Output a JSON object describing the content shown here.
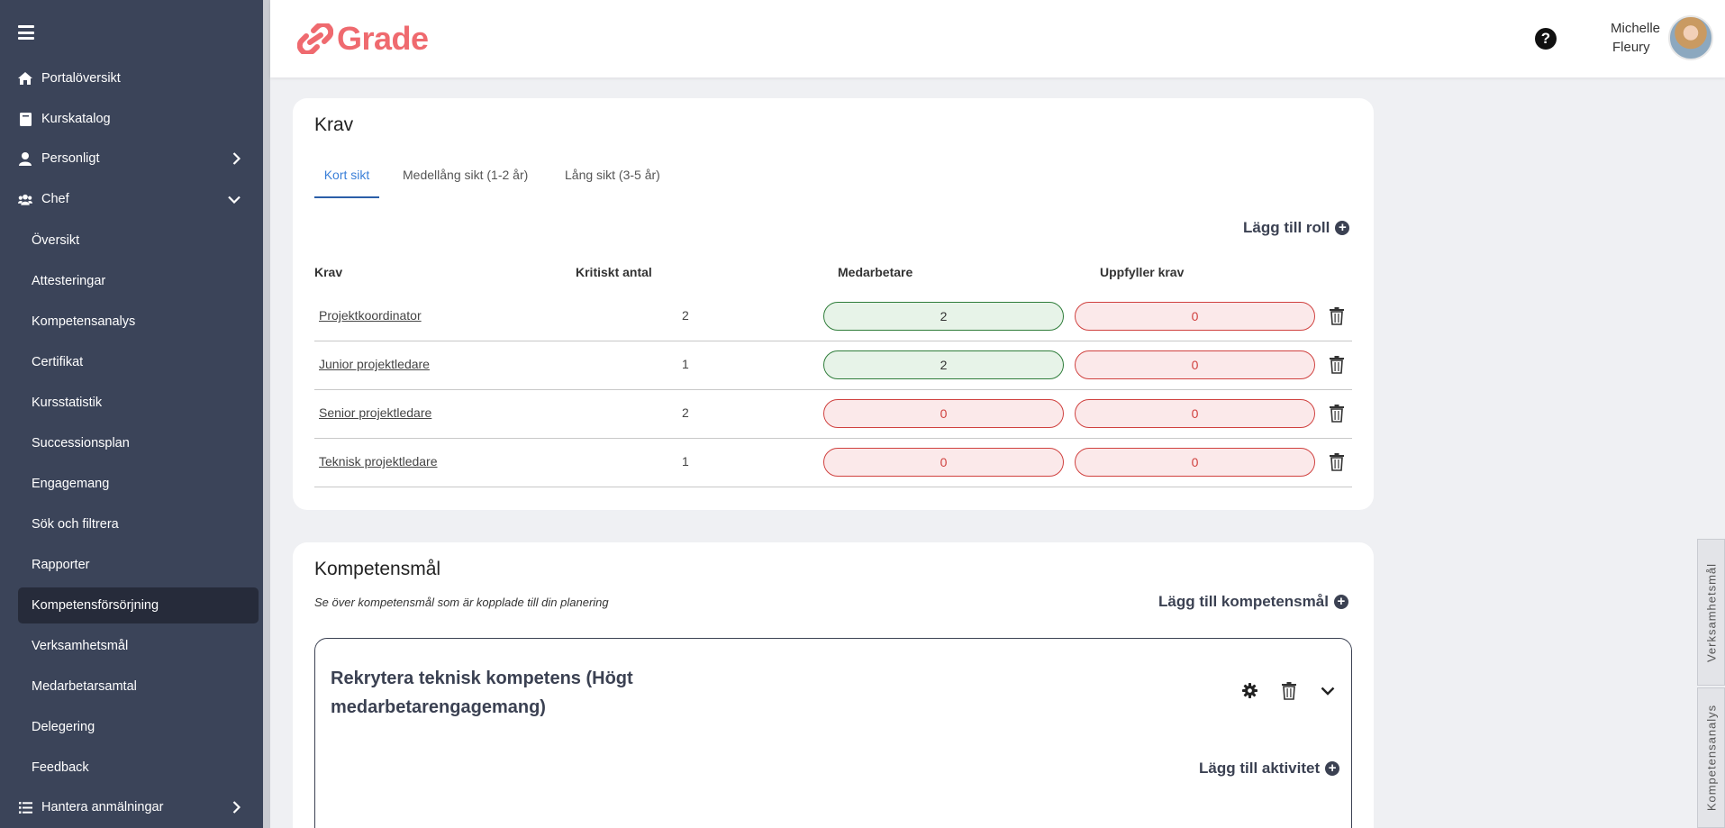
{
  "sidebar": {
    "items": [
      {
        "label": "Portalöversikt",
        "icon": "home-icon"
      },
      {
        "label": "Kurskatalog",
        "icon": "book-icon"
      },
      {
        "label": "Personligt",
        "icon": "person-icon"
      },
      {
        "label": "Chef",
        "icon": "users-icon"
      }
    ],
    "chef_items": [
      "Översikt",
      "Attesteringar",
      "Kompetensanalys",
      "Certifikat",
      "Kursstatistik",
      "Successionsplan",
      "Engagemang",
      "Sök och filtrera",
      "Rapporter",
      "Kompetensförsörjning",
      "Verksamhetsmål",
      "Medarbetarsamtal",
      "Delegering",
      "Feedback"
    ],
    "active_item": "Kompetensförsörjning",
    "bottom_item": {
      "label": "Hantera anmälningar",
      "icon": "list-icon"
    }
  },
  "header": {
    "logo_text": "Grade",
    "brand_color": "#ef6a6f",
    "user_first": "Michelle",
    "user_last": "Fleury"
  },
  "krav": {
    "title": "Krav",
    "tabs": [
      "Kort sikt",
      "Medellång sikt (1-2 år)",
      "Lång sikt (3-5 år)"
    ],
    "active_tab": 0,
    "add_role_label": "Lägg till roll",
    "columns": [
      "Krav",
      "Kritiskt antal",
      "Medarbetare",
      "Uppfyller krav"
    ],
    "rows": [
      {
        "name": "Projektkoordinator",
        "critical": "2",
        "employees": "2",
        "employees_status": "green",
        "meets": "0",
        "meets_status": "red"
      },
      {
        "name": "Junior projektledare",
        "critical": "1",
        "employees": "2",
        "employees_status": "green",
        "meets": "0",
        "meets_status": "red"
      },
      {
        "name": "Senior projektledare",
        "critical": "2",
        "employees": "0",
        "employees_status": "red",
        "meets": "0",
        "meets_status": "red"
      },
      {
        "name": "Teknisk projektledare",
        "critical": "1",
        "employees": "0",
        "employees_status": "red",
        "meets": "0",
        "meets_status": "red"
      }
    ]
  },
  "kompetensmal": {
    "title": "Kompetensmål",
    "subtitle": "Se över kompetensmål som är kopplade till din planering",
    "add_label": "Lägg till kompetensmål",
    "goal": {
      "title": "Rekrytera teknisk kompetens (Högt medarbetarengagemang)",
      "add_activity_label": "Lägg till aktivitet"
    }
  },
  "side_tabs": [
    "Verksamhetsmål",
    "Kompetensanalys"
  ]
}
